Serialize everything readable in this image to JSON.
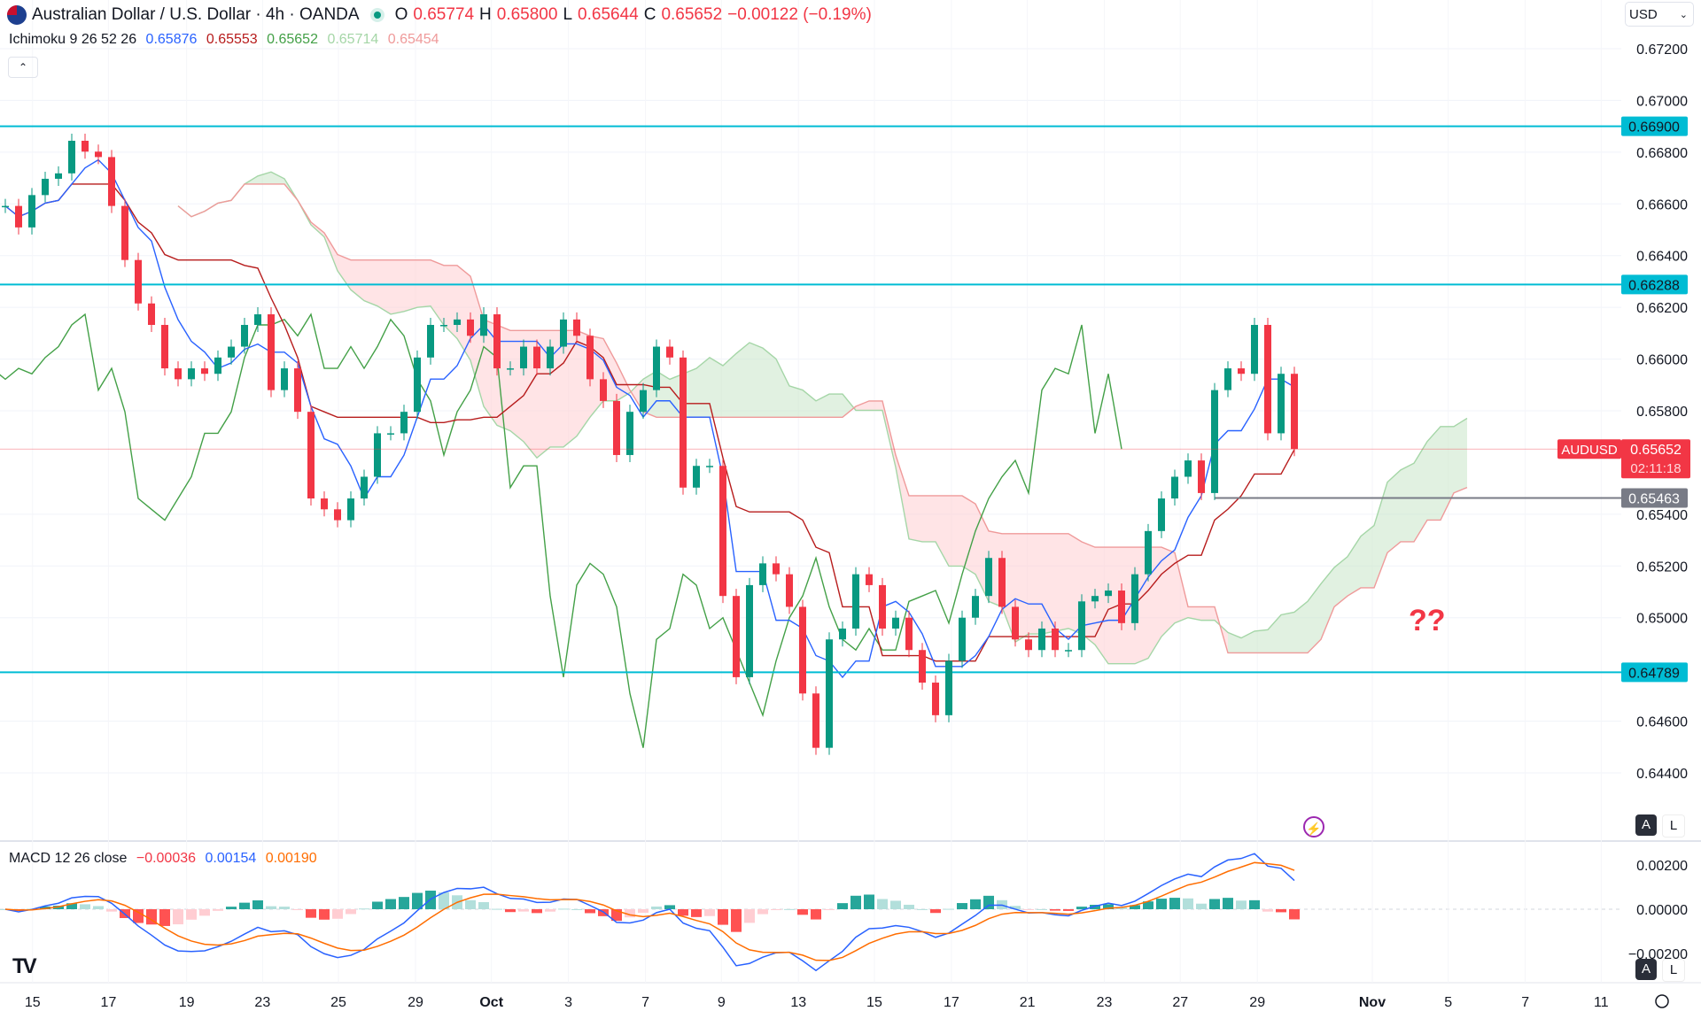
{
  "header": {
    "symbol_title": "Australian Dollar / U.S. Dollar · 4h · OANDA",
    "o_label": "O",
    "o": "0.65774",
    "h_label": "H",
    "h": "0.65800",
    "l_label": "L",
    "l": "0.65644",
    "c_label": "C",
    "c": "0.65652",
    "change": "−0.00122 (−0.19%)"
  },
  "ichimoku": {
    "label": "Ichimoku 9 26 52 26",
    "values": [
      "0.65876",
      "0.65553",
      "0.65652",
      "0.65714",
      "0.65454"
    ],
    "colors": [
      "#2962ff",
      "#b71c1c",
      "#43a047",
      "#a5d6a7",
      "#ef9a9a"
    ]
  },
  "macd": {
    "label": "MACD 12 26 close",
    "values": [
      "−0.00036",
      "0.00154",
      "0.00190"
    ],
    "colors": [
      "#f23645",
      "#2962ff",
      "#ff6d00"
    ]
  },
  "currency": "USD",
  "collapse_icon": "chevron-up-icon",
  "scale_buttons": {
    "auto": "A",
    "log": "L"
  },
  "annotation": "??",
  "chart_data": {
    "type": "candlestick",
    "symbol": "AUDUSD",
    "timeframe": "4h",
    "price_axis_ticks": [
      "0.67200",
      "0.67000",
      "0.66800",
      "0.66600",
      "0.66400",
      "0.66200",
      "0.66000",
      "0.65800",
      "0.65400",
      "0.65200",
      "0.65000",
      "0.64600",
      "0.64400"
    ],
    "price_range": [
      0.642,
      0.6735
    ],
    "macd_axis_ticks": [
      "0.00200",
      "0.00000",
      "−0.00200"
    ],
    "time_ticks": [
      "15",
      "17",
      "19",
      "23",
      "25",
      "29",
      "Oct",
      "3",
      "7",
      "9",
      "13",
      "15",
      "17",
      "21",
      "23",
      "27",
      "29",
      "Nov",
      "5",
      "7",
      "11"
    ],
    "levels": [
      {
        "value": 0.669,
        "label": "0.66900",
        "color": "#00bcd4"
      },
      {
        "value": 0.66288,
        "label": "0.66288",
        "color": "#00bcd4"
      },
      {
        "value": 0.64789,
        "label": "0.64789",
        "color": "#00bcd4"
      },
      {
        "value": 0.65463,
        "label": "0.65463",
        "color": "#787b86"
      }
    ],
    "last_price": {
      "value": 0.65652,
      "label": "0.65652",
      "symbol_label": "AUDUSD",
      "countdown": "02:11:18",
      "color": "#f23645"
    },
    "colors": {
      "up": "#089981",
      "down": "#f23645",
      "cloud_up": "#c8e6c9",
      "cloud_down": "#ffcdd2"
    },
    "closes": [
      0.66592,
      0.66509,
      0.66634,
      0.66697,
      0.66718,
      0.66844,
      0.66802,
      0.66781,
      0.66592,
      0.66383,
      0.66215,
      0.66132,
      0.65964,
      0.65922,
      0.65964,
      0.65943,
      0.66006,
      0.66048,
      0.66132,
      0.66173,
      0.6588,
      0.65964,
      0.65796,
      0.65461,
      0.65419,
      0.65377,
      0.65461,
      0.65545,
      0.65713,
      0.65713,
      0.65796,
      0.66006,
      0.66132,
      0.66132,
      0.66153,
      0.6609,
      0.66173,
      0.65964,
      0.65964,
      0.66048,
      0.65964,
      0.66048,
      0.66153,
      0.6609,
      0.65922,
      0.65838,
      0.65629,
      0.65796,
      0.6588,
      0.66048,
      0.66006,
      0.65503,
      0.65587,
      0.65587,
      0.65084,
      0.6477,
      0.65126,
      0.6521,
      0.65168,
      0.65042,
      0.64707,
      0.64497,
      0.64916,
      0.64958,
      0.65168,
      0.65126,
      0.64958,
      0.65,
      0.64875,
      0.64749,
      0.64623,
      0.64833,
      0.65,
      0.65084,
      0.65231,
      0.65042,
      0.64916,
      0.64875,
      0.64958,
      0.64875,
      0.64875,
      0.65063,
      0.65084,
      0.65105,
      0.64979,
      0.65168,
      0.65335,
      0.65461,
      0.65545,
      0.65608,
      0.65482,
      0.6588,
      0.65964,
      0.65943,
      0.66132,
      0.65713,
      0.65943,
      0.65652
    ]
  }
}
